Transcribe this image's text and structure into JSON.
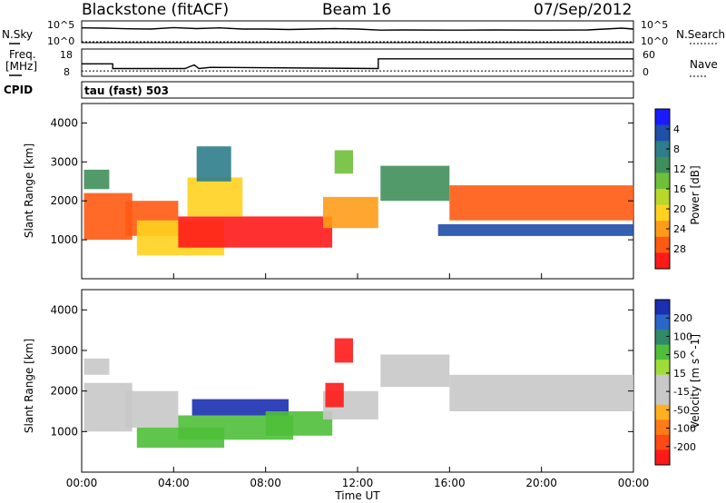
{
  "header": {
    "station": "Blackstone (fitACF)",
    "beam": "Beam 16",
    "date": "07/Sep/2012"
  },
  "strip": {
    "nsky_label": "N.Sky",
    "nsearch_label": "N.Search",
    "freq_label": "Freq.",
    "freq_unit": "[MHz]",
    "nave_label": "Nave",
    "cpid_label": "CPID",
    "cpid_text": "tau (fast) 503",
    "noise_ticks": {
      "top": "10^5",
      "bottom": "10^0"
    },
    "freq_ticks": [
      "18",
      "8"
    ],
    "nave_ticks": [
      "60",
      "0"
    ]
  },
  "axes": {
    "ylabel": "Slant Range [km]",
    "xlabel": "Time UT",
    "x_ticks": [
      "00:00",
      "04:00",
      "08:00",
      "12:00",
      "16:00",
      "20:00",
      "00:00"
    ],
    "y_ticks": [
      "1000",
      "2000",
      "3000",
      "4000"
    ]
  },
  "colorbars": {
    "power": {
      "label": "Power [dB]",
      "ticks": [
        "4",
        "8",
        "12",
        "16",
        "20",
        "24",
        "28"
      ],
      "colors": [
        "#1a1aff",
        "#1f4fa8",
        "#2e7d8a",
        "#3f8f5a",
        "#6fbf3a",
        "#b8d82a",
        "#ffd21f",
        "#ff9c1a",
        "#ff5a12",
        "#ff1a1a"
      ]
    },
    "velocity": {
      "label": "Velocity [m s^-1]",
      "ticks": [
        "200",
        "100",
        "50",
        "15",
        "-15",
        "-50",
        "-100",
        "-200"
      ],
      "colors": [
        "#1b2fb0",
        "#2a66c8",
        "#2f8a6a",
        "#4fbf3a",
        "#a0dd3a",
        "#c8c8c8",
        "#c8c8c8",
        "#ffb020",
        "#ff7a18",
        "#ff4a14",
        "#ff1a1a"
      ]
    }
  },
  "chart_data": [
    {
      "type": "line",
      "title": "N.Sky / N.Search",
      "x_range_hours": [
        0,
        24
      ],
      "ylim": [
        1,
        100000
      ],
      "log_y": true,
      "series": [
        {
          "name": "N.Sky",
          "x": [
            0,
            1,
            2,
            3,
            4,
            5,
            6,
            7,
            8,
            9,
            10,
            11,
            12,
            13,
            14,
            16,
            18,
            20,
            22,
            23.5,
            24
          ],
          "values": [
            3000,
            2500,
            1800,
            1500,
            3500,
            2000,
            3000,
            1500,
            1500,
            1200,
            1500,
            2000,
            1500,
            800,
            900,
            800,
            900,
            800,
            900,
            2500,
            1500
          ]
        }
      ]
    },
    {
      "type": "line",
      "title": "Freq. / Nave",
      "x_range_hours": [
        0,
        24
      ],
      "ylim": [
        8,
        18
      ],
      "series": [
        {
          "name": "Freq.",
          "x": [
            0,
            1.35,
            1.35,
            4.5,
            4.7,
            4.9,
            5.1,
            5.6,
            12.9,
            12.9,
            24
          ],
          "values": [
            12.5,
            12.5,
            10.5,
            10.5,
            11.3,
            12.0,
            10.5,
            11.0,
            10.5,
            14.6,
            14.6
          ]
        },
        {
          "name": "Nave",
          "x": [
            0,
            24
          ],
          "values": [
            9.5,
            9.5
          ]
        }
      ]
    },
    {
      "type": "heatmap",
      "title": "Power [dB]",
      "xlabel": "Time UT",
      "ylabel": "Slant Range [km]",
      "x_range_hours": [
        0,
        24
      ],
      "ylim": [
        0,
        4500
      ],
      "clim": [
        0,
        30
      ],
      "regions": [
        {
          "t0": 0.1,
          "t1": 2.2,
          "r0": 1000,
          "r1": 2200,
          "power": 26
        },
        {
          "t0": 0.1,
          "t1": 1.2,
          "r0": 2300,
          "r1": 2800,
          "power": 9
        },
        {
          "t0": 1.9,
          "t1": 4.2,
          "r0": 1100,
          "r1": 2000,
          "power": 24
        },
        {
          "t0": 2.4,
          "t1": 6.2,
          "r0": 600,
          "r1": 1500,
          "power": 18
        },
        {
          "t0": 4.2,
          "t1": 10.9,
          "r0": 800,
          "r1": 1600,
          "power": 27
        },
        {
          "t0": 4.6,
          "t1": 7.0,
          "r0": 1600,
          "r1": 2600,
          "power": 20
        },
        {
          "t0": 5.0,
          "t1": 6.5,
          "r0": 2500,
          "r1": 3400,
          "power": 8
        },
        {
          "t0": 10.5,
          "t1": 12.9,
          "r0": 1300,
          "r1": 2100,
          "power": 22
        },
        {
          "t0": 11.0,
          "t1": 11.8,
          "r0": 2700,
          "r1": 3300,
          "power": 12
        },
        {
          "t0": 13.0,
          "t1": 16.0,
          "r0": 2000,
          "r1": 2900,
          "power": 9
        },
        {
          "t0": 16.0,
          "t1": 24.0,
          "r0": 1500,
          "r1": 2400,
          "power": 24
        },
        {
          "t0": 15.5,
          "t1": 24.0,
          "r0": 1100,
          "r1": 1400,
          "power": 5
        }
      ]
    },
    {
      "type": "heatmap",
      "title": "Velocity [m s^-1]",
      "xlabel": "Time UT",
      "ylabel": "Slant Range [km]",
      "x_range_hours": [
        0,
        24
      ],
      "ylim": [
        0,
        4500
      ],
      "clim": [
        -200,
        200
      ],
      "regions": [
        {
          "t0": 0.1,
          "t1": 2.2,
          "r0": 1000,
          "r1": 2200,
          "velocity": 0
        },
        {
          "t0": 0.1,
          "t1": 1.2,
          "r0": 2400,
          "r1": 2800,
          "velocity": 0
        },
        {
          "t0": 1.9,
          "t1": 4.2,
          "r0": 1100,
          "r1": 2000,
          "velocity": 0
        },
        {
          "t0": 2.4,
          "t1": 6.2,
          "r0": 600,
          "r1": 1100,
          "velocity": 60
        },
        {
          "t0": 4.2,
          "t1": 9.2,
          "r0": 800,
          "r1": 1400,
          "velocity": 70
        },
        {
          "t0": 4.8,
          "t1": 9.0,
          "r0": 1400,
          "r1": 1800,
          "velocity": 180
        },
        {
          "t0": 8.0,
          "t1": 10.9,
          "r0": 900,
          "r1": 1500,
          "velocity": 60
        },
        {
          "t0": 10.5,
          "t1": 12.9,
          "r0": 1300,
          "r1": 2000,
          "velocity": 0
        },
        {
          "t0": 10.6,
          "t1": 11.4,
          "r0": 1600,
          "r1": 2200,
          "velocity": -200
        },
        {
          "t0": 11.0,
          "t1": 11.8,
          "r0": 2700,
          "r1": 3300,
          "velocity": -200
        },
        {
          "t0": 13.0,
          "t1": 16.0,
          "r0": 2100,
          "r1": 2900,
          "velocity": 0
        },
        {
          "t0": 16.0,
          "t1": 24.0,
          "r0": 1500,
          "r1": 2400,
          "velocity": 0
        }
      ]
    }
  ]
}
